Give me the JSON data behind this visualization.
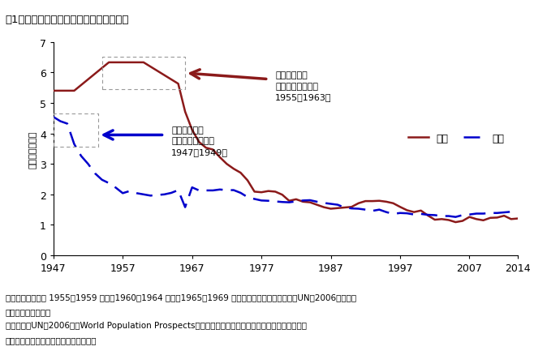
{
  "title": "図1　日韓における合計特殊出生率の動向",
  "ylabel": "合計特殊出生率",
  "xlim": [
    1947,
    2014
  ],
  "ylim": [
    0,
    7
  ],
  "yticks": [
    0,
    1,
    2,
    3,
    4,
    5,
    6,
    7
  ],
  "xticks": [
    1947,
    1957,
    1967,
    1977,
    1987,
    1997,
    2007,
    2014
  ],
  "korea_color": "#8B1A1A",
  "japan_color": "#0000CC",
  "korea_x": [
    1947,
    1950,
    1955,
    1960,
    1965,
    1966,
    1967,
    1968,
    1969,
    1970,
    1971,
    1972,
    1973,
    1974,
    1975,
    1976,
    1977,
    1978,
    1979,
    1980,
    1981,
    1982,
    1983,
    1984,
    1985,
    1986,
    1987,
    1988,
    1989,
    1990,
    1991,
    1992,
    1993,
    1994,
    1995,
    1996,
    1997,
    1998,
    1999,
    2000,
    2001,
    2002,
    2003,
    2004,
    2005,
    2006,
    2007,
    2008,
    2009,
    2010,
    2011,
    2012,
    2013,
    2014
  ],
  "korea_y": [
    5.4,
    5.4,
    6.33,
    6.33,
    5.63,
    4.71,
    4.12,
    3.72,
    3.53,
    3.47,
    3.22,
    3.0,
    2.84,
    2.71,
    2.46,
    2.09,
    2.07,
    2.11,
    2.09,
    1.99,
    1.79,
    1.84,
    1.76,
    1.74,
    1.66,
    1.58,
    1.53,
    1.55,
    1.57,
    1.59,
    1.71,
    1.78,
    1.78,
    1.79,
    1.76,
    1.71,
    1.59,
    1.48,
    1.42,
    1.47,
    1.31,
    1.17,
    1.19,
    1.16,
    1.09,
    1.13,
    1.26,
    1.19,
    1.15,
    1.23,
    1.24,
    1.3,
    1.19,
    1.21
  ],
  "japan_x": [
    1947,
    1948,
    1949,
    1950,
    1951,
    1952,
    1953,
    1954,
    1955,
    1956,
    1957,
    1958,
    1959,
    1960,
    1961,
    1962,
    1963,
    1964,
    1965,
    1966,
    1967,
    1968,
    1969,
    1970,
    1971,
    1972,
    1973,
    1974,
    1975,
    1976,
    1977,
    1978,
    1979,
    1980,
    1981,
    1982,
    1983,
    1984,
    1985,
    1986,
    1987,
    1988,
    1989,
    1990,
    1991,
    1992,
    1993,
    1994,
    1995,
    1996,
    1997,
    1998,
    1999,
    2000,
    2001,
    2002,
    2003,
    2004,
    2005,
    2006,
    2007,
    2008,
    2009,
    2010,
    2011,
    2012,
    2013,
    2014
  ],
  "japan_y": [
    4.54,
    4.4,
    4.32,
    3.65,
    3.26,
    3.0,
    2.69,
    2.48,
    2.37,
    2.22,
    2.04,
    2.11,
    2.04,
    2.0,
    1.96,
    1.98,
    2.0,
    2.05,
    2.14,
    1.58,
    2.23,
    2.13,
    2.13,
    2.13,
    2.16,
    2.14,
    2.14,
    2.05,
    1.91,
    1.85,
    1.8,
    1.79,
    1.77,
    1.75,
    1.74,
    1.77,
    1.8,
    1.81,
    1.76,
    1.72,
    1.69,
    1.66,
    1.57,
    1.54,
    1.53,
    1.5,
    1.46,
    1.5,
    1.42,
    1.36,
    1.39,
    1.38,
    1.34,
    1.36,
    1.33,
    1.32,
    1.29,
    1.29,
    1.26,
    1.32,
    1.34,
    1.37,
    1.37,
    1.39,
    1.39,
    1.41,
    1.43,
    1.42
  ],
  "korea_label": "韓国",
  "japan_label": "日本",
  "korea_annot_text": "韓国における\nベビーブーム世代\n1955～1963年",
  "japan_annot_text": "日本における\nベビーブーム世代\n1947～1949年",
  "note_line1": "注）韓国における 1955～1959 年度、1960～1964 年度、1965～1969 年度はデータの制約により、UN（2006）の５年",
  "note_line2": "平均の数値を利用。",
  "source_line1": "資料出所）UN（2006）　World Population Prospects、韓国統計庁「人口動態統計」各年度、厉生労働",
  "source_line2": "省統計情報部『人口動態統計』より作成"
}
